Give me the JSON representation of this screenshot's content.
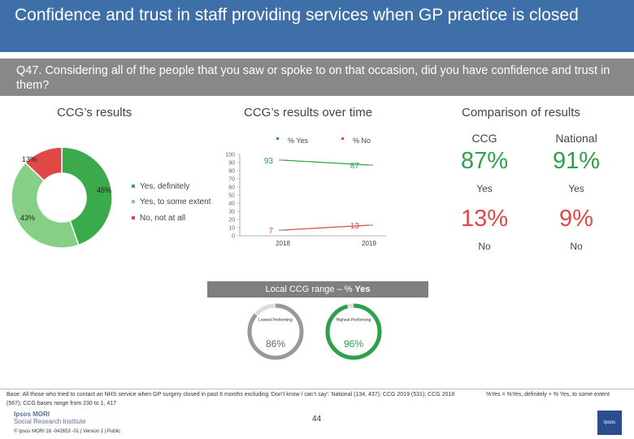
{
  "header": {
    "title": "Confidence and trust in staff providing services when GP practice is closed",
    "question": "Q47. Considering all of the people that you saw or spoke to on that occasion, did you have confidence and trust in them?"
  },
  "sections": {
    "ccg_results": "CCG’s results",
    "over_time": "CCG’s results over time",
    "comparison": "Comparison of results"
  },
  "chart_data": [
    {
      "type": "pie",
      "title": "CCG’s results",
      "variant": "donut",
      "labels": [
        "Yes, definitely",
        "Yes, to some extent",
        "No, not at all"
      ],
      "value_labels": [
        "45%",
        "43%",
        "13%"
      ],
      "values": [
        45,
        43,
        13
      ],
      "colors": [
        "#3aaa4a",
        "#86cf86",
        "#e04848"
      ],
      "legend": {
        "placement": "right"
      }
    },
    {
      "type": "line",
      "title": "CCG’s results over time",
      "x": [
        "2018",
        "2019"
      ],
      "series": [
        {
          "name": "% Yes",
          "values": [
            93,
            87
          ],
          "color": "#2fa04a"
        },
        {
          "name": "% No",
          "values": [
            7,
            13
          ],
          "color": "#e04848"
        }
      ],
      "ylim": [
        0,
        100
      ],
      "yticks": [
        "0",
        "10",
        "20",
        "30",
        "40",
        "50",
        "60",
        "70",
        "80",
        "90",
        "100"
      ],
      "grid": false,
      "legend": {
        "placement": "top"
      }
    }
  ],
  "comparison": {
    "columns": [
      "CCG",
      "National"
    ],
    "yes_values": [
      "87%",
      "91%"
    ],
    "yes_label": "Yes",
    "no_values": [
      "13%",
      "9%"
    ],
    "no_label": "No",
    "yes_color": "#2fa04a",
    "no_color": "#e04848"
  },
  "range": {
    "title_prefix": "Local CCG range – % ",
    "title_bold": "Yes",
    "lowest_caption": "Lowest Performing",
    "lowest_value": "86%",
    "lowest_fraction": 0.86,
    "highest_caption": "Highest Performing",
    "highest_value": "96%",
    "highest_fraction": 0.96
  },
  "footer": {
    "base": "Base: All those who tried to contact an NHS service when GP surgery closed in past 6 months excluding ‘Don’t know / can’t say’: National (134, 437); CCG 2019 (531); CCG 2018 (567); CCG bases range from 230 to 1, 417",
    "note": "%Yes = %Yes, definitely + % Yes, to some extent",
    "logo_line1": "Ipsos MORI",
    "logo_line2": "Social Research Institute",
    "copyright": "© Ipsos MORI     18 -042653 -01 | Version 1 | Public",
    "page_number": "44",
    "corner_logo": "Ipsos"
  }
}
